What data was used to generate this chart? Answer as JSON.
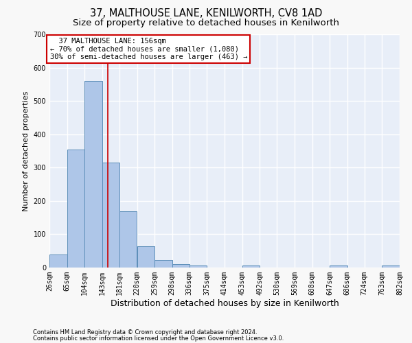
{
  "title": "37, MALTHOUSE LANE, KENILWORTH, CV8 1AD",
  "subtitle": "Size of property relative to detached houses in Kenilworth",
  "xlabel": "Distribution of detached houses by size in Kenilworth",
  "ylabel": "Number of detached properties",
  "footnote1": "Contains HM Land Registry data © Crown copyright and database right 2024.",
  "footnote2": "Contains public sector information licensed under the Open Government Licence v3.0.",
  "bin_edges": [
    26,
    65,
    104,
    143,
    181,
    220,
    259,
    298,
    336,
    375,
    414,
    453,
    492,
    530,
    569,
    608,
    647,
    686,
    724,
    763,
    802
  ],
  "bar_heights": [
    40,
    355,
    560,
    315,
    168,
    63,
    22,
    10,
    6,
    0,
    0,
    6,
    0,
    0,
    0,
    0,
    6,
    0,
    0,
    6
  ],
  "bar_color": "#aec6e8",
  "bar_edgecolor": "#5b8db8",
  "property_size": 156,
  "annotation_line1": "  37 MALTHOUSE LANE: 156sqm",
  "annotation_line2": "← 70% of detached houses are smaller (1,080)",
  "annotation_line3": "30% of semi-detached houses are larger (463) →",
  "annotation_box_color": "#ffffff",
  "annotation_edge_color": "#cc0000",
  "vline_color": "#cc0000",
  "background_color": "#e8eef8",
  "grid_color": "#ffffff",
  "fig_background": "#f8f8f8",
  "ylim": [
    0,
    700
  ],
  "yticks": [
    0,
    100,
    200,
    300,
    400,
    500,
    600,
    700
  ],
  "title_fontsize": 10.5,
  "subtitle_fontsize": 9.5,
  "xlabel_fontsize": 9,
  "ylabel_fontsize": 8,
  "tick_fontsize": 7,
  "annotation_fontsize": 7.5,
  "footnote_fontsize": 6
}
